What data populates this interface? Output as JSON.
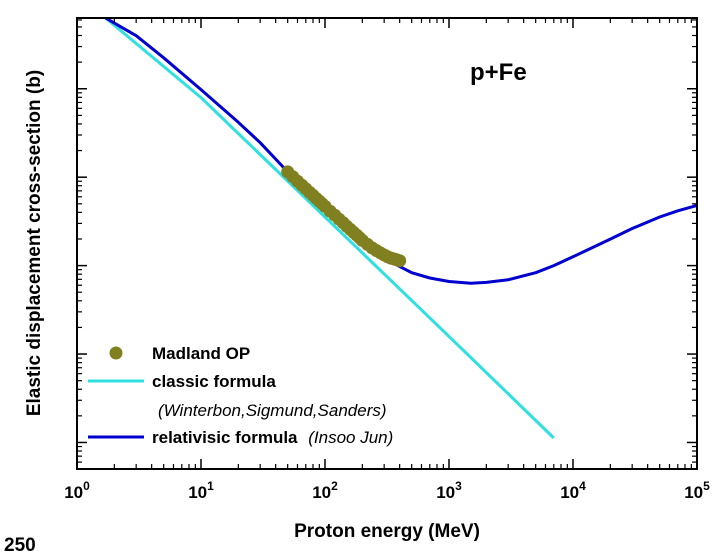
{
  "chart_data": {
    "type": "line",
    "xlabel": "Proton energy (MeV)",
    "ylabel": "Elastic displacement cross-section (b)",
    "x_scale": "log",
    "y_scale": "log",
    "xlim": [
      1,
      100000
    ],
    "ylim_decades": [
      -0.3,
      4.8
    ],
    "x_ticks": [
      {
        "base": "10",
        "exp": "0"
      },
      {
        "base": "10",
        "exp": "1"
      },
      {
        "base": "10",
        "exp": "2"
      },
      {
        "base": "10",
        "exp": "3"
      },
      {
        "base": "10",
        "exp": "4"
      },
      {
        "base": "10",
        "exp": "5"
      }
    ],
    "annotation": "p+Fe",
    "corner_text": "250",
    "grid": false,
    "legend_position": "bottom-left",
    "series": [
      {
        "name": "Madland OP",
        "kind": "scatter",
        "color": "#808020",
        "x": [
          50,
          55,
          60,
          65,
          70,
          75,
          80,
          85,
          90,
          95,
          100,
          110,
          120,
          130,
          140,
          150,
          160,
          170,
          180,
          190,
          200,
          220,
          240,
          260,
          280,
          300,
          320,
          340,
          360,
          380,
          400
        ],
        "y": [
          3.06,
          3.005,
          2.955,
          2.91,
          2.87,
          2.83,
          2.795,
          2.76,
          2.73,
          2.7,
          2.67,
          2.615,
          2.57,
          2.525,
          2.485,
          2.445,
          2.41,
          2.375,
          2.345,
          2.315,
          2.285,
          2.24,
          2.2,
          2.17,
          2.145,
          2.12,
          2.1,
          2.085,
          2.075,
          2.065,
          2.055
        ]
      },
      {
        "name": "classic formula",
        "name_note": "(Winterbon,Sigmund,Sanders)",
        "kind": "line",
        "color": "#30e0e0",
        "x": [
          1.7,
          10,
          100,
          1000,
          7000
        ],
        "y": [
          4.8,
          3.9,
          2.55,
          1.2,
          0.05
        ]
      },
      {
        "name": "relativisic formula",
        "name_note": "(Insoo Jun)",
        "kind": "line",
        "color": "#0000d0",
        "x": [
          1.7,
          3,
          5,
          10,
          20,
          30,
          50,
          70,
          100,
          150,
          200,
          300,
          500,
          700,
          1000,
          1500,
          2000,
          3000,
          5000,
          7000,
          10000,
          20000,
          30000,
          50000,
          70000,
          100000
        ],
        "y": [
          4.8,
          4.6,
          4.35,
          3.99,
          3.62,
          3.39,
          3.06,
          2.84,
          2.62,
          2.39,
          2.24,
          2.08,
          1.92,
          1.86,
          1.82,
          1.8,
          1.81,
          1.84,
          1.92,
          2.0,
          2.1,
          2.3,
          2.42,
          2.55,
          2.62,
          2.68
        ]
      }
    ]
  }
}
